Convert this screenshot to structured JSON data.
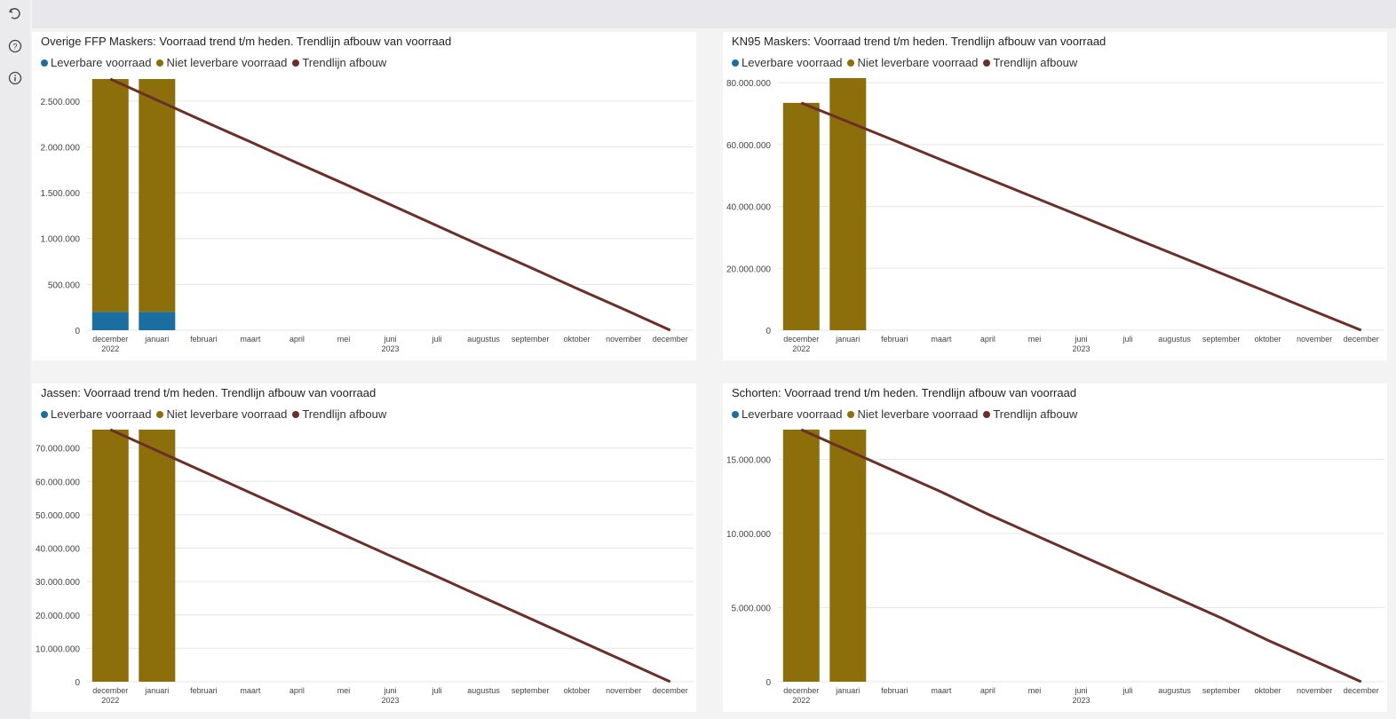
{
  "toolbar": {
    "icons": [
      "undo-icon",
      "help-icon",
      "info-icon"
    ]
  },
  "colors": {
    "leverbaar": "#1a6fa0",
    "niet_leverbaar": "#8c6e0a",
    "trendlijn": "#6b2f27",
    "grid": "#e6e6e6",
    "axis_text": "#444444"
  },
  "legend": {
    "leverbaar": "Leverbare voorraad",
    "niet_leverbaar": "Niet leverbare voorraad",
    "trendlijn": "Trendlijn afbouw"
  },
  "chart_data": [
    {
      "id": "ffp",
      "type": "bar",
      "title": "Overige FFP Maskers: Voorraad trend t/m heden. Trendlijn afbouw van voorraad",
      "categories": [
        "december",
        "januari",
        "februari",
        "maart",
        "april",
        "mei",
        "juni",
        "juli",
        "augustus",
        "september",
        "oktober",
        "november",
        "december"
      ],
      "year_labels": [
        {
          "index": 0,
          "label": "2022"
        },
        {
          "index": 6,
          "label": "2023"
        }
      ],
      "series": [
        {
          "name": "Leverbare voorraad",
          "values": [
            200000,
            200000,
            null,
            null,
            null,
            null,
            null,
            null,
            null,
            null,
            null,
            null,
            null
          ]
        },
        {
          "name": "Niet leverbare voorraad",
          "values": [
            2540000,
            2540000,
            null,
            null,
            null,
            null,
            null,
            null,
            null,
            null,
            null,
            null,
            null
          ]
        },
        {
          "name": "Trendlijn afbouw",
          "type": "line",
          "values": [
            2740000,
            2510000,
            2280000,
            2055000,
            1825000,
            1600000,
            1370000,
            1140000,
            910000,
            685000,
            455000,
            230000,
            0
          ]
        }
      ],
      "yticks": [
        0,
        500000,
        1000000,
        1500000,
        2000000,
        2500000
      ],
      "ytick_labels": [
        "0",
        "500.000",
        "1.000.000",
        "1.500.000",
        "2.000.000",
        "2.500.000"
      ],
      "ylim": [
        0,
        2750000
      ],
      "grid": true,
      "legend_position": "top-left"
    },
    {
      "id": "kn95",
      "type": "bar",
      "title": "KN95 Maskers: Voorraad trend t/m heden. Trendlijn afbouw van voorraad",
      "categories": [
        "december",
        "januari",
        "februari",
        "maart",
        "april",
        "mei",
        "juni",
        "juli",
        "augustus",
        "september",
        "oktober",
        "november",
        "december"
      ],
      "year_labels": [
        {
          "index": 0,
          "label": "2022"
        },
        {
          "index": 6,
          "label": "2023"
        }
      ],
      "series": [
        {
          "name": "Leverbare voorraad",
          "values": [
            0,
            0,
            null,
            null,
            null,
            null,
            null,
            null,
            null,
            null,
            null,
            null,
            null
          ]
        },
        {
          "name": "Niet leverbare voorraad",
          "values": [
            73500000,
            81500000,
            null,
            null,
            null,
            null,
            null,
            null,
            null,
            null,
            null,
            null,
            null
          ]
        },
        {
          "name": "Trendlijn afbouw",
          "type": "line",
          "values": [
            73500000,
            67400000,
            61300000,
            55100000,
            49000000,
            42900000,
            36800000,
            30600000,
            24500000,
            18400000,
            12300000,
            6100000,
            0
          ]
        }
      ],
      "yticks": [
        0,
        20000000,
        40000000,
        60000000,
        80000000
      ],
      "ytick_labels": [
        "0",
        "20.000.000",
        "40.000.000",
        "60.000.000",
        "80.000.000"
      ],
      "ylim": [
        0,
        81500000
      ],
      "grid": true,
      "legend_position": "top-left"
    },
    {
      "id": "jassen",
      "type": "bar",
      "title": "Jassen: Voorraad trend t/m heden. Trendlijn afbouw van voorraad",
      "categories": [
        "december",
        "januari",
        "februari",
        "maart",
        "april",
        "mei",
        "juni",
        "juli",
        "augustus",
        "september",
        "oktober",
        "november",
        "december"
      ],
      "year_labels": [
        {
          "index": 0,
          "label": "2022"
        },
        {
          "index": 6,
          "label": "2023"
        }
      ],
      "series": [
        {
          "name": "Leverbare voorraad",
          "values": [
            0,
            0,
            null,
            null,
            null,
            null,
            null,
            null,
            null,
            null,
            null,
            null,
            null
          ]
        },
        {
          "name": "Niet leverbare voorraad",
          "values": [
            75500000,
            75500000,
            null,
            null,
            null,
            null,
            null,
            null,
            null,
            null,
            null,
            null,
            null
          ]
        },
        {
          "name": "Trendlijn afbouw",
          "type": "line",
          "values": [
            75500000,
            69200000,
            62900000,
            56600000,
            50300000,
            44000000,
            37700000,
            31500000,
            25200000,
            18900000,
            12600000,
            6300000,
            0
          ]
        }
      ],
      "yticks": [
        0,
        10000000,
        20000000,
        30000000,
        40000000,
        50000000,
        60000000,
        70000000
      ],
      "ytick_labels": [
        "0",
        "10.000.000",
        "20.000.000",
        "30.000.000",
        "40.000.000",
        "50.000.000",
        "60.000.000",
        "70.000.000"
      ],
      "ylim": [
        0,
        75500000
      ],
      "grid": true,
      "legend_position": "top-left"
    },
    {
      "id": "schorten",
      "type": "bar",
      "title": "Schorten: Voorraad trend t/m heden. Trendlijn afbouw van voorraad",
      "categories": [
        "december",
        "januari",
        "februari",
        "maart",
        "april",
        "mei",
        "juni",
        "juli",
        "augustus",
        "september",
        "oktober",
        "november",
        "december"
      ],
      "year_labels": [
        {
          "index": 0,
          "label": "2022"
        },
        {
          "index": 6,
          "label": "2023"
        }
      ],
      "series": [
        {
          "name": "Leverbare voorraad",
          "values": [
            0,
            0,
            null,
            null,
            null,
            null,
            null,
            null,
            null,
            null,
            null,
            null,
            null
          ]
        },
        {
          "name": "Niet leverbare voorraad",
          "values": [
            17000000,
            17000000,
            null,
            null,
            null,
            null,
            null,
            null,
            null,
            null,
            null,
            null,
            null
          ]
        },
        {
          "name": "Trendlijn afbouw",
          "type": "line",
          "values": [
            17000000,
            15600000,
            14200000,
            12800000,
            11300000,
            9900000,
            8500000,
            7100000,
            5700000,
            4300000,
            2800000,
            1400000,
            0
          ]
        }
      ],
      "yticks": [
        0,
        5000000,
        10000000,
        15000000
      ],
      "ytick_labels": [
        "0",
        "5.000.000",
        "10.000.000",
        "15.000.000"
      ],
      "ylim": [
        0,
        17000000
      ],
      "grid": true,
      "legend_position": "top-left"
    }
  ]
}
